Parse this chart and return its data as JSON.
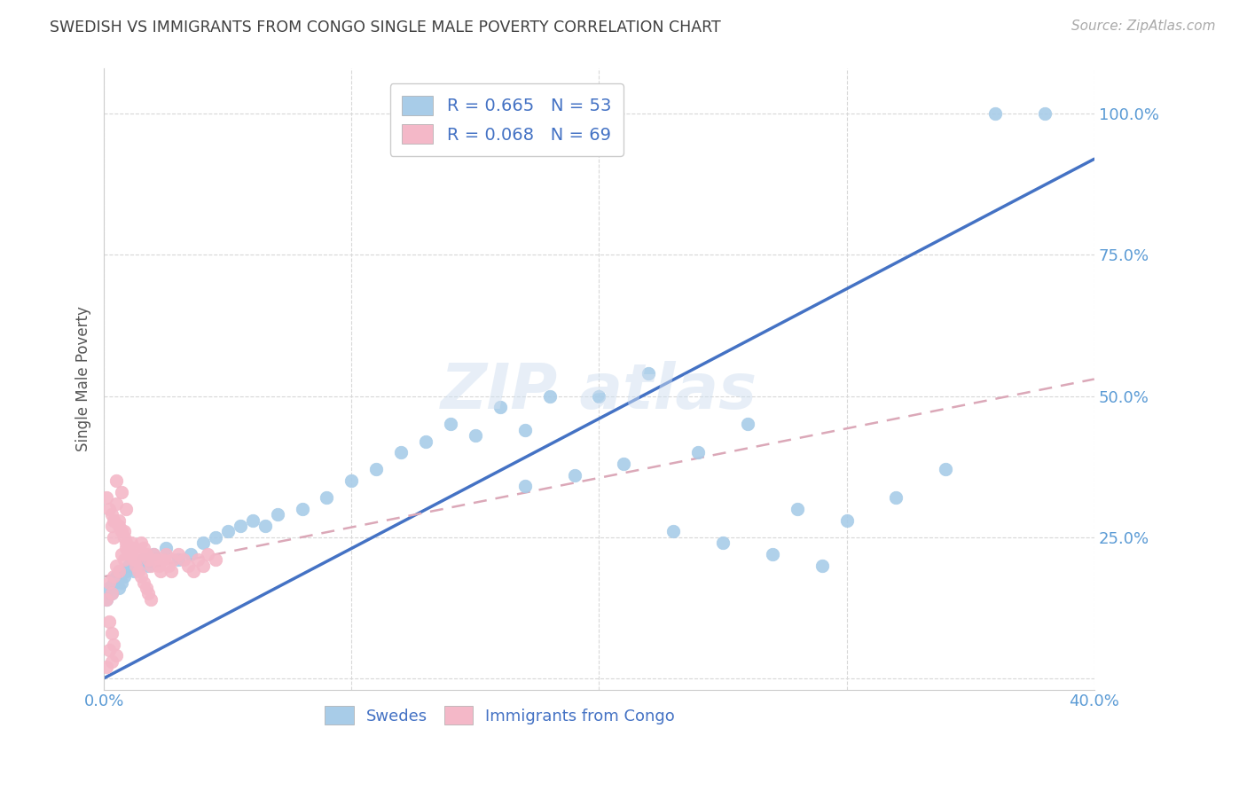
{
  "title": "SWEDISH VS IMMIGRANTS FROM CONGO SINGLE MALE POVERTY CORRELATION CHART",
  "source": "Source: ZipAtlas.com",
  "ylabel_label": "Single Male Poverty",
  "xlim": [
    0.0,
    0.4
  ],
  "ylim": [
    -0.02,
    1.08
  ],
  "x_ticks": [
    0.0,
    0.1,
    0.2,
    0.3,
    0.4
  ],
  "y_ticks": [
    0.0,
    0.25,
    0.5,
    0.75,
    1.0
  ],
  "x_tick_labels": [
    "0.0%",
    "",
    "",
    "",
    "40.0%"
  ],
  "y_tick_labels": [
    "",
    "25.0%",
    "50.0%",
    "75.0%",
    "100.0%"
  ],
  "swedes_color": "#a8cce8",
  "congo_color": "#f4b8c8",
  "swedes_line_color": "#4472c4",
  "congo_line_color": "#dba8b8",
  "grid_color": "#d8d8d8",
  "background_color": "#ffffff",
  "tick_color": "#5b9bd5",
  "title_color": "#404040",
  "legend_r_swedes": "R = 0.665",
  "legend_n_swedes": "N = 53",
  "legend_r_congo": "R = 0.068",
  "legend_n_congo": "N = 69",
  "swedes_line_x0": 0.0,
  "swedes_line_y0": 0.0,
  "swedes_line_x1": 0.4,
  "swedes_line_y1": 0.92,
  "congo_line_x0": 0.0,
  "congo_line_y0": 0.18,
  "congo_line_x1": 0.4,
  "congo_line_y1": 0.53,
  "swedes_x": [
    0.001,
    0.002,
    0.003,
    0.004,
    0.005,
    0.006,
    0.007,
    0.008,
    0.009,
    0.01,
    0.012,
    0.014,
    0.016,
    0.018,
    0.02,
    0.025,
    0.03,
    0.035,
    0.04,
    0.045,
    0.05,
    0.055,
    0.06,
    0.065,
    0.07,
    0.08,
    0.09,
    0.1,
    0.11,
    0.12,
    0.13,
    0.14,
    0.15,
    0.16,
    0.17,
    0.18,
    0.2,
    0.22,
    0.24,
    0.26,
    0.28,
    0.3,
    0.32,
    0.34,
    0.36,
    0.38,
    0.17,
    0.19,
    0.21,
    0.23,
    0.25,
    0.27,
    0.29
  ],
  "swedes_y": [
    0.14,
    0.16,
    0.15,
    0.17,
    0.18,
    0.16,
    0.17,
    0.18,
    0.19,
    0.2,
    0.19,
    0.2,
    0.21,
    0.2,
    0.22,
    0.23,
    0.21,
    0.22,
    0.24,
    0.25,
    0.26,
    0.27,
    0.28,
    0.27,
    0.29,
    0.3,
    0.32,
    0.35,
    0.37,
    0.4,
    0.42,
    0.45,
    0.43,
    0.48,
    0.44,
    0.5,
    0.5,
    0.54,
    0.4,
    0.45,
    0.3,
    0.28,
    0.32,
    0.37,
    1.0,
    1.0,
    0.34,
    0.36,
    0.38,
    0.26,
    0.24,
    0.22,
    0.2
  ],
  "congo_x": [
    0.001,
    0.002,
    0.003,
    0.004,
    0.005,
    0.006,
    0.007,
    0.008,
    0.009,
    0.01,
    0.011,
    0.012,
    0.013,
    0.014,
    0.015,
    0.016,
    0.017,
    0.018,
    0.019,
    0.02,
    0.021,
    0.022,
    0.023,
    0.024,
    0.025,
    0.026,
    0.027,
    0.028,
    0.03,
    0.032,
    0.034,
    0.036,
    0.038,
    0.04,
    0.042,
    0.045,
    0.005,
    0.007,
    0.009,
    0.003,
    0.004,
    0.006,
    0.008,
    0.002,
    0.001,
    0.003,
    0.005,
    0.004,
    0.006,
    0.007,
    0.008,
    0.009,
    0.01,
    0.011,
    0.012,
    0.013,
    0.014,
    0.015,
    0.016,
    0.017,
    0.018,
    0.019,
    0.002,
    0.003,
    0.004,
    0.005,
    0.001,
    0.002,
    0.003
  ],
  "congo_y": [
    0.14,
    0.17,
    0.15,
    0.18,
    0.2,
    0.19,
    0.22,
    0.21,
    0.23,
    0.22,
    0.24,
    0.23,
    0.21,
    0.22,
    0.24,
    0.23,
    0.22,
    0.21,
    0.2,
    0.22,
    0.21,
    0.2,
    0.19,
    0.21,
    0.22,
    0.2,
    0.19,
    0.21,
    0.22,
    0.21,
    0.2,
    0.19,
    0.21,
    0.2,
    0.22,
    0.21,
    0.35,
    0.33,
    0.3,
    0.27,
    0.25,
    0.28,
    0.26,
    0.3,
    0.32,
    0.29,
    0.31,
    0.28,
    0.27,
    0.26,
    0.25,
    0.24,
    0.23,
    0.22,
    0.21,
    0.2,
    0.19,
    0.18,
    0.17,
    0.16,
    0.15,
    0.14,
    0.1,
    0.08,
    0.06,
    0.04,
    0.02,
    0.05,
    0.03
  ]
}
